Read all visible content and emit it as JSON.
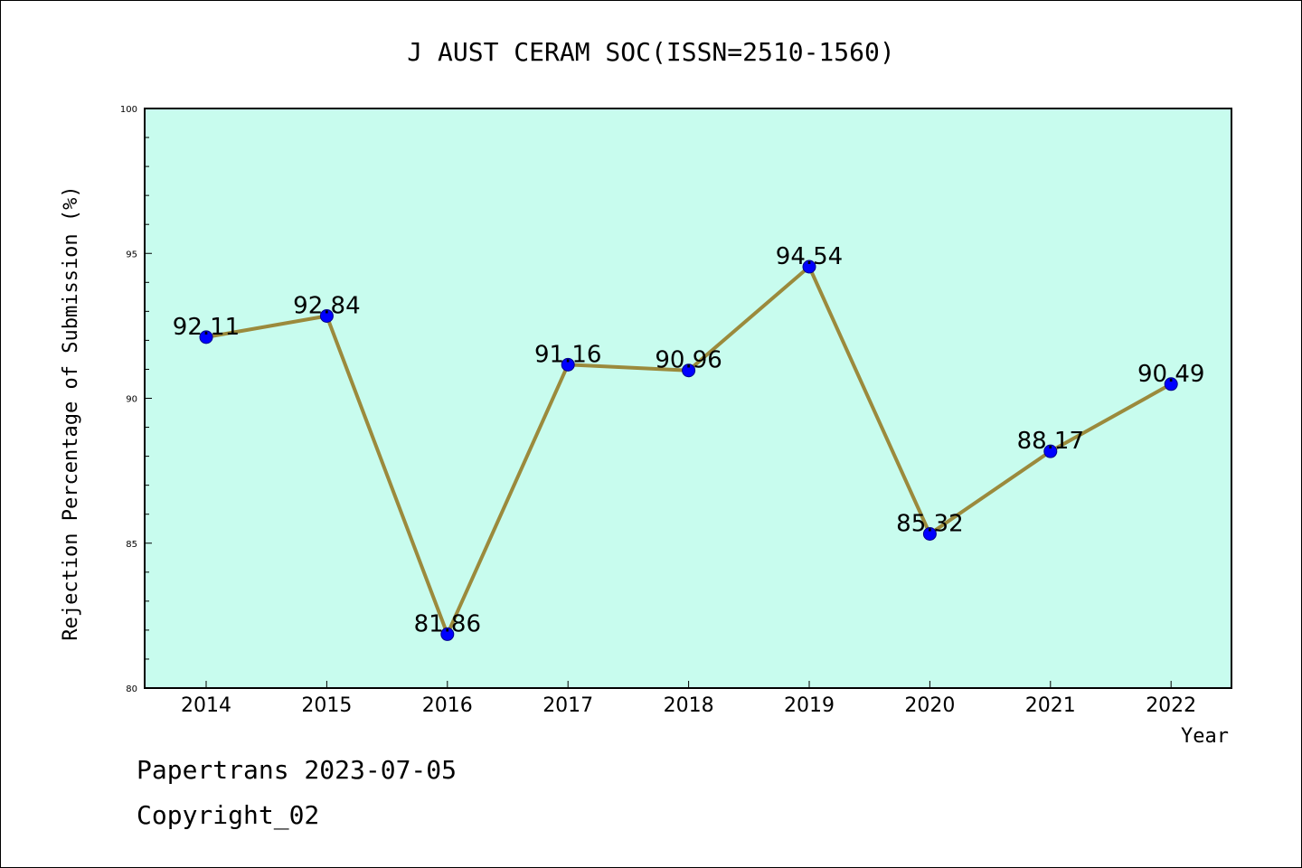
{
  "chart_data": {
    "type": "line",
    "title": "J AUST CERAM SOC(ISSN=2510-1560)",
    "xlabel": "Year",
    "ylabel": "Rejection Percentage of Submission (%)",
    "categories": [
      "2014",
      "2015",
      "2016",
      "2017",
      "2018",
      "2019",
      "2020",
      "2021",
      "2022"
    ],
    "series": [
      {
        "values": [
          92.11,
          92.84,
          81.86,
          91.16,
          90.96,
          94.54,
          85.32,
          88.17,
          90.49
        ],
        "labels": [
          "92.11",
          "92.84",
          "81.86",
          "91.16",
          "90.96",
          "94.54",
          "85.32",
          "88.17",
          "90.49"
        ]
      }
    ],
    "ylim": [
      80,
      100
    ],
    "yticks": [
      "80",
      "85",
      "90",
      "95",
      "100"
    ],
    "grid": false,
    "colors": {
      "plot_background": "#c8fcee",
      "line": "#9b8a3c",
      "marker": "#0000ff"
    }
  },
  "footer": {
    "line1": "Papertrans 2023-07-05",
    "line2": "Copyright_02"
  }
}
